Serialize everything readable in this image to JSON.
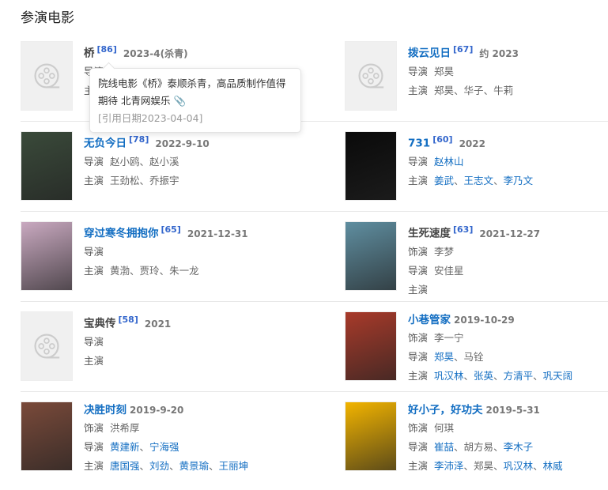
{
  "section_title": "参演电影",
  "labels": {
    "director": "导演",
    "actors": "主演",
    "role": "饰演",
    "separator": "、"
  },
  "movies": [
    {
      "title": "桥",
      "title_link": false,
      "ref": "[86]",
      "date": "2023-4(杀青)",
      "poster": "placeholder",
      "director": [],
      "actors": []
    },
    {
      "title": "拨云见日",
      "title_link": true,
      "ref": "[67]",
      "date": "约 2023",
      "poster": "placeholder",
      "director": [
        {
          "name": "郑昊",
          "link": false
        }
      ],
      "actors": [
        {
          "name": "郑昊",
          "link": false
        },
        {
          "name": "华子",
          "link": false
        },
        {
          "name": "牛莉",
          "link": false
        }
      ]
    },
    {
      "title": "无负今日",
      "title_link": true,
      "ref": "[78]",
      "date": "2022-9-10",
      "poster": "#3a4a3a",
      "director": [
        {
          "name": "赵小鸥",
          "link": false
        },
        {
          "name": "赵小溪",
          "link": false
        }
      ],
      "actors": [
        {
          "name": "王劲松",
          "link": false
        },
        {
          "name": "乔振宇",
          "link": false
        }
      ]
    },
    {
      "title": "731",
      "title_link": true,
      "ref": "[60]",
      "date": "2022",
      "poster": "#0a0a0a",
      "director": [
        {
          "name": "赵林山",
          "link": true
        }
      ],
      "actors": [
        {
          "name": "姜武",
          "link": true
        },
        {
          "name": "王志文",
          "link": true
        },
        {
          "name": "李乃文",
          "link": true
        }
      ]
    },
    {
      "title": "穿过寒冬拥抱你",
      "title_link": true,
      "ref": "[65]",
      "date": "2021-12-31",
      "poster": "#c9a9c0",
      "director": [],
      "actors": [
        {
          "name": "黄渤",
          "link": false
        },
        {
          "name": "贾玲",
          "link": false
        },
        {
          "name": "朱一龙",
          "link": false
        }
      ]
    },
    {
      "title": "生死速度",
      "title_link": false,
      "ref": "[63]",
      "date": "2021-12-27",
      "poster": "#5f8ea0",
      "role": [
        {
          "name": "李梦",
          "link": false
        }
      ],
      "director": [
        {
          "name": "安佳星",
          "link": false
        }
      ],
      "actors": []
    },
    {
      "title": "宝典传",
      "title_link": false,
      "ref": "[58]",
      "date": "2021",
      "poster": "placeholder",
      "director": [],
      "actors": []
    },
    {
      "title": "小巷管家",
      "title_link": true,
      "ref": "",
      "date": "2019-10-29",
      "poster": "#a83a2a",
      "role": [
        {
          "name": "李一宁",
          "link": false
        }
      ],
      "director": [
        {
          "name": "郑昊",
          "link": true
        },
        {
          "name": "马铨",
          "link": false
        }
      ],
      "actors": [
        {
          "name": "巩汉林",
          "link": true
        },
        {
          "name": "张英",
          "link": true
        },
        {
          "name": "方清平",
          "link": true
        },
        {
          "name": "巩天阔",
          "link": true
        }
      ]
    },
    {
      "title": "决胜时刻",
      "title_link": true,
      "ref": "",
      "date": "2019-9-20",
      "poster": "#7a4a3a",
      "role": [
        {
          "name": "洪希厚",
          "link": false
        }
      ],
      "director": [
        {
          "name": "黄建新",
          "link": true
        },
        {
          "name": "宁海强",
          "link": true
        }
      ],
      "actors": [
        {
          "name": "唐国强",
          "link": true
        },
        {
          "name": "刘劲",
          "link": true
        },
        {
          "name": "黄景瑜",
          "link": true
        },
        {
          "name": "王丽坤",
          "link": true
        }
      ]
    },
    {
      "title": "好小子，好功夫",
      "title_link": true,
      "ref": "",
      "date": "2019-5-31",
      "poster": "#f2b400",
      "role": [
        {
          "name": "何琪",
          "link": false
        }
      ],
      "director": [
        {
          "name": "崔喆",
          "link": true
        },
        {
          "name": "胡方易",
          "link": false
        },
        {
          "name": "李木子",
          "link": true
        }
      ],
      "actors": [
        {
          "name": "李沛泽",
          "link": true
        },
        {
          "name": "郑昊",
          "link": false
        },
        {
          "name": "巩汉林",
          "link": true
        },
        {
          "name": "林威",
          "link": true
        }
      ]
    }
  ],
  "tooltip": {
    "text": "院线电影《桥》泰顺杀青，高品质制作值得期待 北青网娱乐",
    "icon": "link-icon",
    "cite_date": "[引用日期2023-04-04]"
  }
}
